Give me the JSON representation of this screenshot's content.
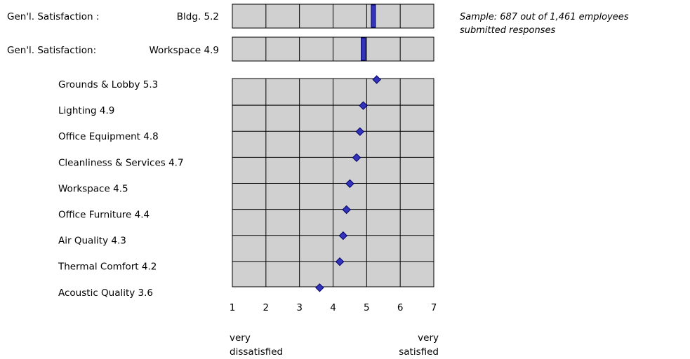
{
  "chart_data": {
    "type": "scatter",
    "summary_bars": [
      {
        "label_left": "Gen'l. Satisfaction :",
        "label_right": "Bldg. 5.2",
        "value": 5.2
      },
      {
        "label_left": "Gen'l. Satisfaction:",
        "label_right": "Workspace 4.9",
        "value": 4.9
      }
    ],
    "categories": [
      "Grounds & Lobby 5.3",
      "Lighting 4.9",
      "Office Equipment 4.8",
      "Cleanliness & Services 4.7",
      "Workspace 4.5",
      "Office Furniture 4.4",
      "Air Quality 4.3",
      "Thermal Comfort 4.2",
      "Acoustic Quality 3.6"
    ],
    "values": [
      5.3,
      4.9,
      4.8,
      4.7,
      4.5,
      4.4,
      4.3,
      4.2,
      3.6
    ],
    "xlim": [
      1,
      7
    ],
    "xticks": [
      "1",
      "2",
      "3",
      "4",
      "5",
      "6",
      "7"
    ],
    "xlabel_left": [
      "very",
      "dissatisfied"
    ],
    "xlabel_right": [
      "very",
      "satisfied"
    ],
    "grid": true,
    "annotation": [
      "Sample: 687 out of 1,461 employees",
      "submitted responses"
    ],
    "colors": {
      "plot_bg": "#d0d0d0",
      "marker": "#3333bb",
      "marker_edge": "#000066",
      "grid": "#000000"
    }
  }
}
